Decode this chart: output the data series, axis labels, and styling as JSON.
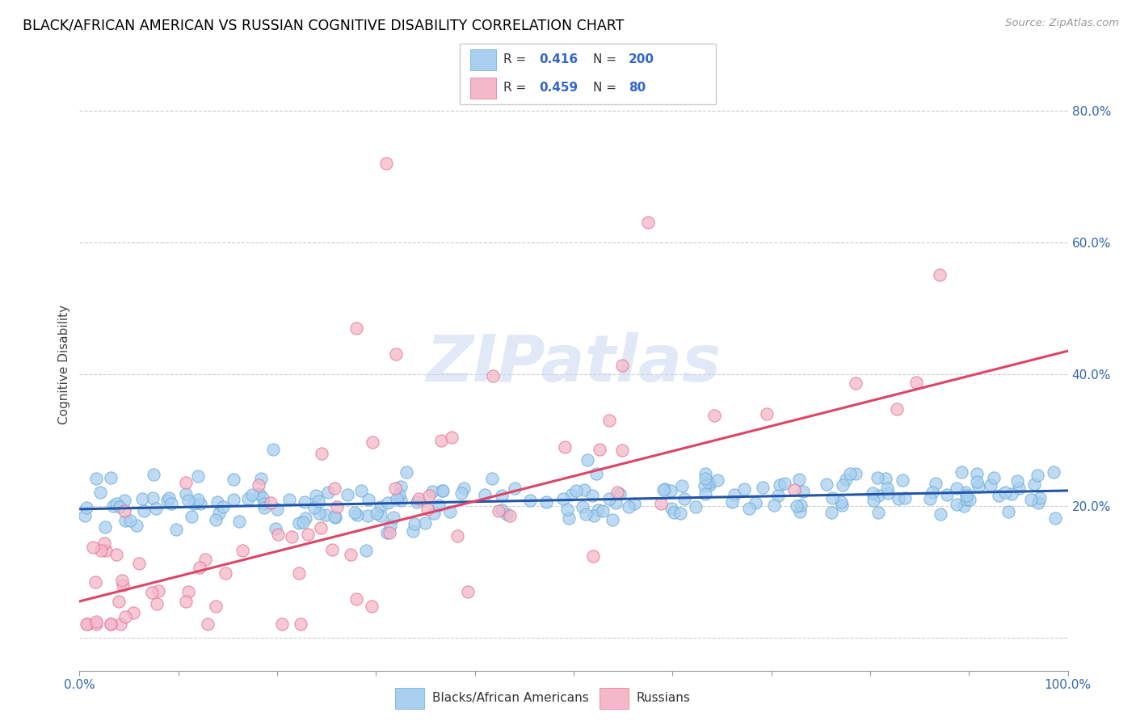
{
  "title": "BLACK/AFRICAN AMERICAN VS RUSSIAN COGNITIVE DISABILITY CORRELATION CHART",
  "source": "Source: ZipAtlas.com",
  "ylabel": "Cognitive Disability",
  "ytick_vals": [
    0.0,
    0.2,
    0.4,
    0.6,
    0.8
  ],
  "ytick_labels": [
    "",
    "20.0%",
    "40.0%",
    "60.0%",
    "80.0%"
  ],
  "xlim": [
    0.0,
    1.0
  ],
  "ylim": [
    -0.05,
    0.88
  ],
  "blue_R": 0.416,
  "blue_N": 200,
  "pink_R": 0.459,
  "pink_N": 80,
  "blue_color": "#a8cff0",
  "blue_edge_color": "#6aaad4",
  "pink_color": "#f5b8c8",
  "pink_edge_color": "#e07090",
  "blue_line_color": "#2255aa",
  "pink_line_color": "#dd4466",
  "watermark": "ZIPatlas",
  "legend_label_blue": "Blacks/African Americans",
  "legend_label_pink": "Russians",
  "blue_intercept": 0.195,
  "blue_slope": 0.028,
  "pink_intercept": 0.055,
  "pink_slope": 0.38
}
